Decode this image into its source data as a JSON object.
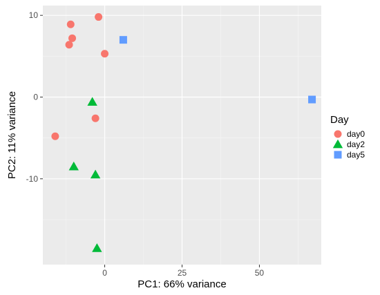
{
  "chart_data": {
    "type": "scatter",
    "title": "",
    "xlabel": "PC1: 66% variance",
    "ylabel": "PC2: 11% variance",
    "xlim": [
      -20,
      70
    ],
    "ylim": [
      -20.5,
      11.2
    ],
    "x_ticks": [
      0,
      25,
      50
    ],
    "x_tick_labels": [
      "0",
      "25",
      "50"
    ],
    "y_ticks": [
      -10,
      0,
      10
    ],
    "y_tick_labels": [
      "-10",
      "0",
      "10"
    ],
    "grid": true,
    "legend": {
      "title": "Day",
      "placement": "right"
    },
    "series": [
      {
        "name": "day0",
        "marker": "circle",
        "color": "#F8766D",
        "points": [
          {
            "x": -2,
            "y": 9.8
          },
          {
            "x": -11,
            "y": 8.9
          },
          {
            "x": -10.5,
            "y": 7.2
          },
          {
            "x": -11.5,
            "y": 6.4
          },
          {
            "x": 0,
            "y": 5.3
          },
          {
            "x": -3,
            "y": -2.6
          },
          {
            "x": -16,
            "y": -4.8
          }
        ]
      },
      {
        "name": "day2",
        "marker": "triangle",
        "color": "#00BA38",
        "points": [
          {
            "x": -4,
            "y": -0.6
          },
          {
            "x": -10,
            "y": -8.5
          },
          {
            "x": -3,
            "y": -9.5
          },
          {
            "x": -2.5,
            "y": -18.5
          }
        ]
      },
      {
        "name": "day5",
        "marker": "square",
        "color": "#619CFF",
        "points": [
          {
            "x": 6,
            "y": 7.0
          },
          {
            "x": 67,
            "y": -0.3
          }
        ]
      }
    ]
  },
  "colors": {
    "panel_background": "#EBEBEB",
    "grid_major": "#FFFFFF",
    "grid_minor": "#F5F5F5"
  }
}
